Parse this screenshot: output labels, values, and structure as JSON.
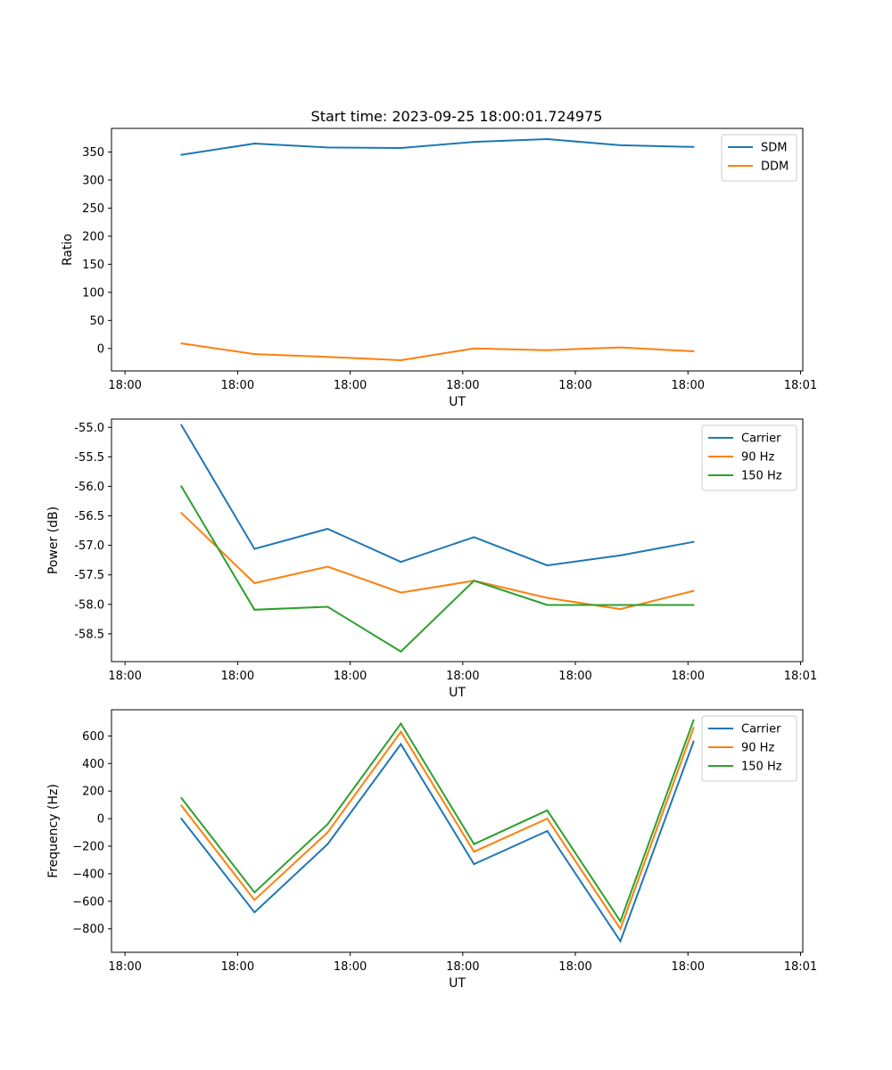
{
  "title": "Start time: 2023-09-25 18:00:01.724975",
  "x_tick_labels": [
    "18:00",
    "18:00",
    "18:00",
    "18:00",
    "18:00",
    "18:00",
    "18:01"
  ],
  "chart_data": [
    {
      "type": "line",
      "title": "Start time: 2023-09-25 18:00:01.724975",
      "xlabel": "UT",
      "ylabel": "Ratio",
      "x": [
        0.5,
        1.15,
        1.8,
        2.45,
        3.1,
        3.75,
        4.4,
        5.05
      ],
      "xlim": [
        -0.12,
        6.02
      ],
      "ylim": [
        -40,
        392
      ],
      "yticks": [
        0,
        50,
        100,
        150,
        200,
        250,
        300,
        350
      ],
      "ytick_labels": [
        "0",
        "50",
        "100",
        "150",
        "200",
        "250",
        "300",
        "350"
      ],
      "legend_position": "top-right",
      "series": [
        {
          "name": "SDM",
          "color": "#1f77b4",
          "values": [
            345,
            365,
            358,
            357,
            368,
            373,
            362,
            359
          ]
        },
        {
          "name": "DDM",
          "color": "#ff7f0e",
          "values": [
            9,
            -10,
            -15,
            -21,
            0,
            -3,
            2,
            -5
          ]
        }
      ]
    },
    {
      "type": "line",
      "xlabel": "UT",
      "ylabel": "Power (dB)",
      "x": [
        0.5,
        1.15,
        1.8,
        2.45,
        3.1,
        3.75,
        4.4,
        5.05
      ],
      "xlim": [
        -0.12,
        6.02
      ],
      "ylim": [
        -58.97,
        -54.86
      ],
      "yticks": [
        -58.5,
        -58.0,
        -57.5,
        -57.0,
        -56.5,
        -56.0,
        -55.5,
        -55.0
      ],
      "ytick_labels": [
        "-58.5",
        "-58.0",
        "-57.5",
        "-57.0",
        "-56.5",
        "-56.0",
        "-55.5",
        "-55.0"
      ],
      "legend_position": "top-right",
      "series": [
        {
          "name": "Carrier",
          "color": "#1f77b4",
          "values": [
            -54.96,
            -57.06,
            -56.72,
            -57.28,
            -56.86,
            -57.34,
            -57.17,
            -56.94
          ]
        },
        {
          "name": "90 Hz",
          "color": "#ff7f0e",
          "values": [
            -56.45,
            -57.64,
            -57.36,
            -57.8,
            -57.6,
            -57.89,
            -58.08,
            -57.77
          ]
        },
        {
          "name": "150 Hz",
          "color": "#2ca02c",
          "values": [
            -56.0,
            -58.09,
            -58.04,
            -58.8,
            -57.6,
            -58.01,
            -58.01,
            -58.01
          ]
        }
      ]
    },
    {
      "type": "line",
      "xlabel": "UT",
      "ylabel": "Frequency (Hz)",
      "x": [
        0.5,
        1.15,
        1.8,
        2.45,
        3.1,
        3.75,
        4.4,
        5.05
      ],
      "xlim": [
        -0.12,
        6.02
      ],
      "ylim": [
        -970,
        790
      ],
      "yticks": [
        -800,
        -600,
        -400,
        -200,
        0,
        200,
        400,
        600
      ],
      "ytick_labels": [
        "−800",
        "−600",
        "−400",
        "−200",
        "0",
        "200",
        "400",
        "600"
      ],
      "legend_position": "top-right",
      "series": [
        {
          "name": "Carrier",
          "color": "#1f77b4",
          "values": [
            0,
            -680,
            -185,
            540,
            -330,
            -90,
            -890,
            560
          ]
        },
        {
          "name": "90 Hz",
          "color": "#ff7f0e",
          "values": [
            95,
            -590,
            -100,
            630,
            -240,
            0,
            -800,
            660
          ]
        },
        {
          "name": "150 Hz",
          "color": "#2ca02c",
          "values": [
            150,
            -535,
            -40,
            690,
            -185,
            60,
            -745,
            715
          ]
        }
      ]
    }
  ]
}
